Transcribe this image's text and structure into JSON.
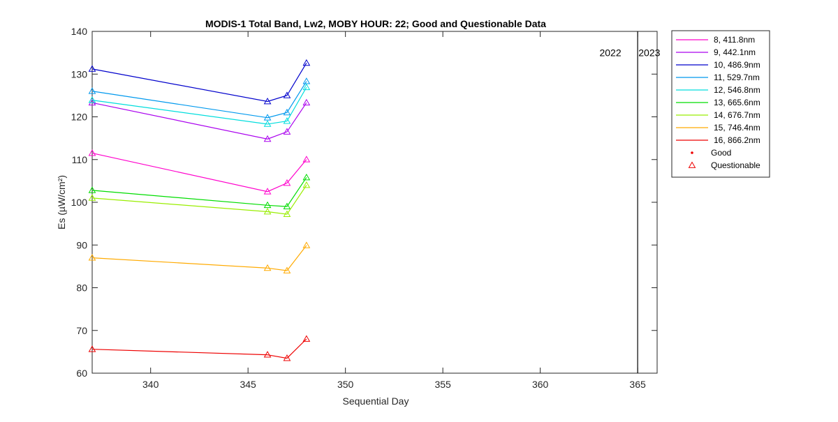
{
  "chart_data": {
    "type": "line",
    "title": "MODIS-1 Total Band,  Lw2, MOBY HOUR: 22;  Good and Questionable Data",
    "xlabel": "Sequential Day",
    "ylabel": "Es (µW/cm²)",
    "xlim": [
      337,
      366
    ],
    "ylim": [
      60,
      140
    ],
    "xticks": [
      340,
      345,
      350,
      355,
      360,
      365
    ],
    "yticks": [
      60,
      70,
      80,
      90,
      100,
      110,
      120,
      130,
      140
    ],
    "grid": false,
    "legend_position": "outside-top-right",
    "x": [
      337,
      346,
      347,
      348
    ],
    "series": [
      {
        "name": "8, 411.8nm",
        "color": "#ff00cc",
        "values": [
          111.5,
          102.5,
          104.5,
          110.0
        ]
      },
      {
        "name": "9, 442.1nm",
        "color": "#aa00ee",
        "values": [
          123.3,
          114.8,
          116.5,
          123.3
        ]
      },
      {
        "name": "10, 486.9nm",
        "color": "#0000cc",
        "values": [
          131.2,
          123.6,
          125.0,
          132.6
        ]
      },
      {
        "name": "11, 529.7nm",
        "color": "#0099ee",
        "values": [
          126.0,
          119.8,
          121.0,
          128.3
        ]
      },
      {
        "name": "12, 546.8nm",
        "color": "#00dddd",
        "values": [
          123.9,
          118.3,
          119.0,
          126.9
        ]
      },
      {
        "name": "13, 665.6nm",
        "color": "#00dd00",
        "values": [
          102.8,
          99.3,
          99.0,
          105.8
        ]
      },
      {
        "name": "14, 676.7nm",
        "color": "#99ee00",
        "values": [
          101.0,
          97.8,
          97.2,
          104.0
        ]
      },
      {
        "name": "15, 746.4nm",
        "color": "#ffaa00",
        "values": [
          87.0,
          84.6,
          84.0,
          89.9
        ]
      },
      {
        "name": "16, 866.2nm",
        "color": "#ee0000",
        "values": [
          65.6,
          64.3,
          63.5,
          68.0
        ]
      }
    ],
    "marker_legend": [
      {
        "label": "Good",
        "marker": "dot",
        "color": "#ee0000"
      },
      {
        "label": "Questionable",
        "marker": "triangle",
        "color": "#ee0000"
      }
    ],
    "annotations": [
      {
        "type": "vline",
        "x": 365,
        "color": "#000000"
      },
      {
        "type": "text",
        "text": "2022",
        "x": 363.6,
        "y": 135
      },
      {
        "type": "text",
        "text": "2023",
        "x": 365.6,
        "y": 135
      }
    ]
  }
}
